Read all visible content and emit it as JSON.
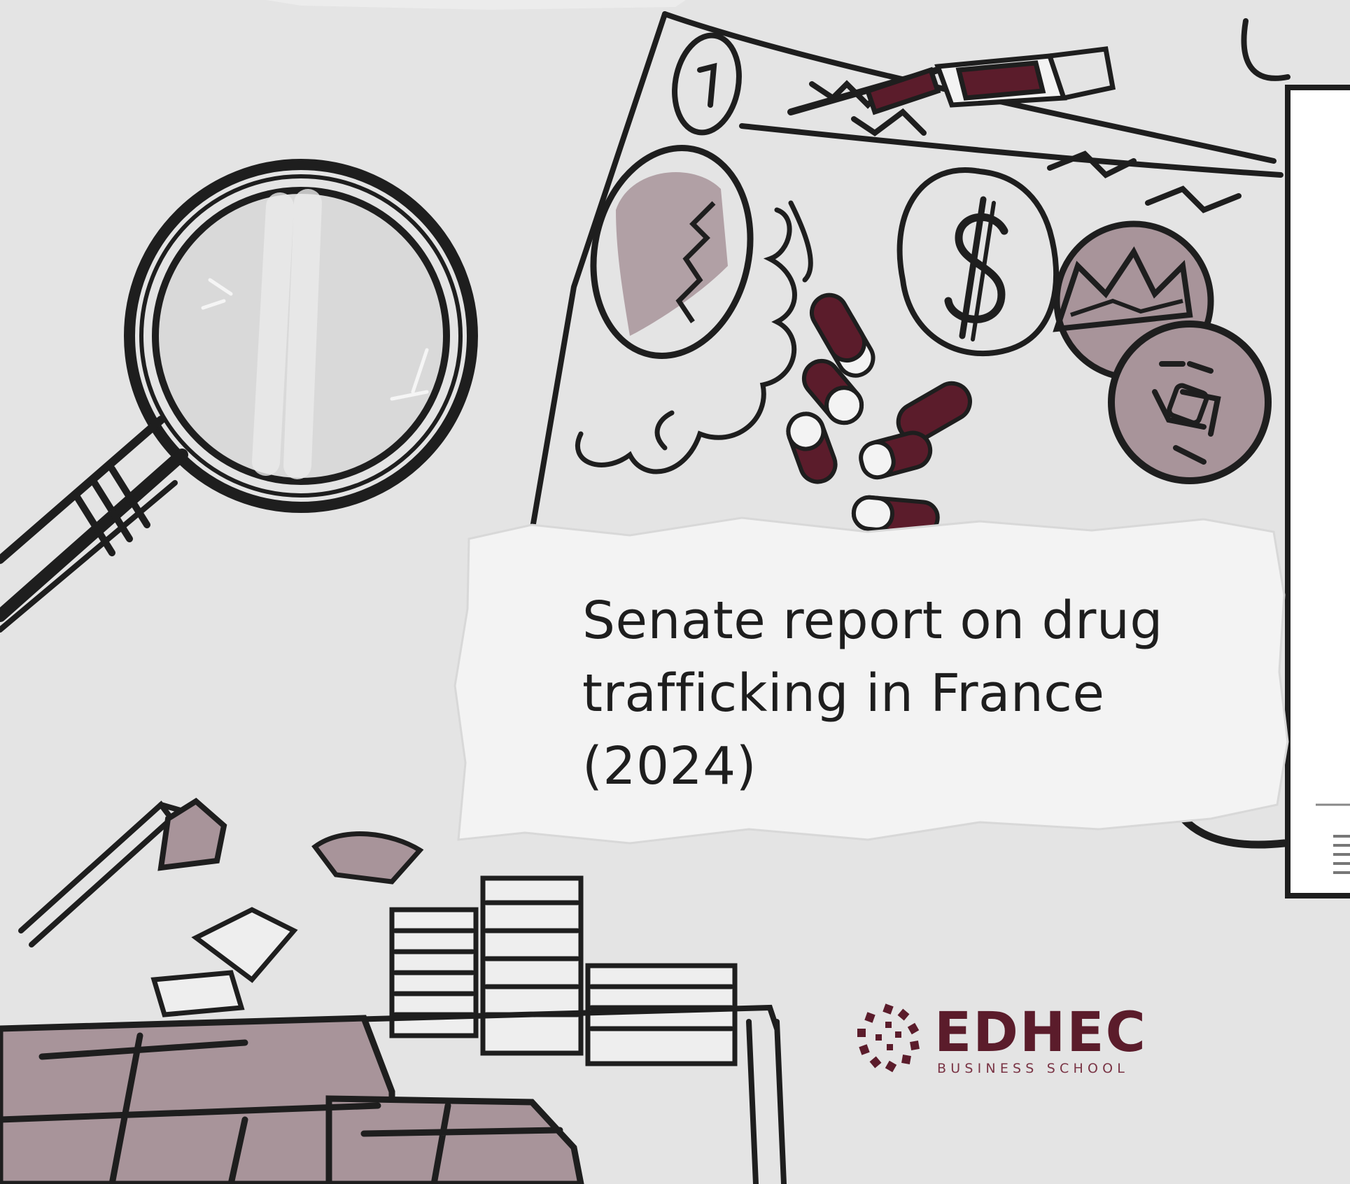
{
  "title": {
    "lines": [
      "Senate report on drug",
      "trafficking in France",
      "(2024)"
    ]
  },
  "logo": {
    "name": "EDHEC",
    "subtitle": "BUSINESS SCHOOL"
  },
  "colors": {
    "background": "#e4e4e4",
    "ink": "#1e1e1e",
    "maroon": "#5b1c2b",
    "mauve": "#a8949a",
    "card": "#f3f3f3"
  },
  "icons": [
    "magnifying-glass-icon",
    "dollar-coin-icon",
    "crown-coin-icon",
    "capsule-pills-icon",
    "paperwork-stack-icon",
    "desk-lamp-icon",
    "curved-arrow-icon",
    "report-document-icon"
  ]
}
